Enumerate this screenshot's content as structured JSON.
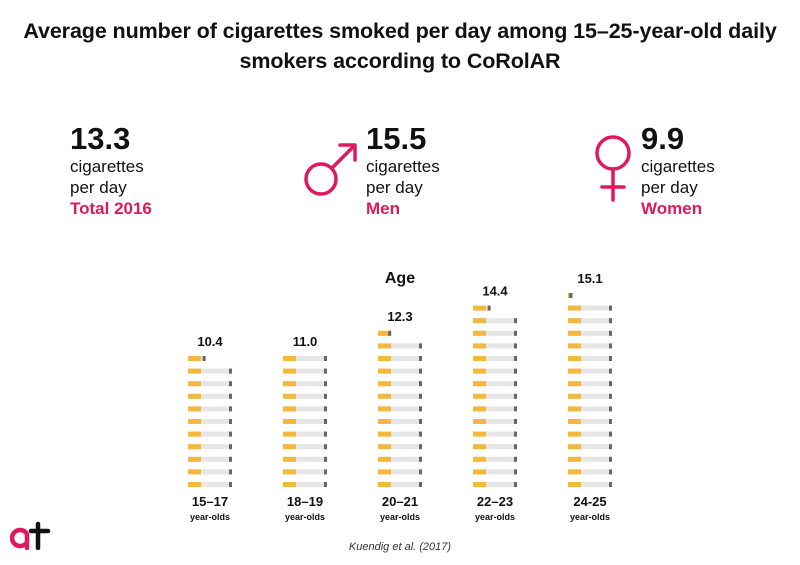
{
  "title": "Average number of cigarettes smoked per day among 15–25-year-old daily smokers according to CoRolAR",
  "stats": [
    {
      "value": "13.3",
      "unit_line1": "cigarettes",
      "unit_line2": "per day",
      "label": "Total 2016",
      "icon": ""
    },
    {
      "value": "15.5",
      "unit_line1": "cigarettes",
      "unit_line2": "per day",
      "label": "Men",
      "icon": "male-symbol-icon"
    },
    {
      "value": "9.9",
      "unit_line1": "cigarettes",
      "unit_line2": "per day",
      "label": "Women",
      "icon": "female-symbol-icon"
    }
  ],
  "colors": {
    "accent": "#e0185c",
    "filter": "#f5b83d",
    "paper": "#e6e6e6",
    "tip": "#666666",
    "text": "#111111"
  },
  "chart_data": {
    "type": "bar",
    "title": "Age",
    "categories": [
      "15–17",
      "18–19",
      "20–21",
      "22–23",
      "24-25"
    ],
    "category_sublabel": "year-olds",
    "values": [
      10.4,
      11.0,
      12.3,
      14.4,
      15.1
    ],
    "value_labels": [
      "10.4",
      "11.0",
      "12.3",
      "14.4",
      "15.1"
    ],
    "unit": "cigarettes per day"
  },
  "source": "Kuendig et al. (2017)"
}
